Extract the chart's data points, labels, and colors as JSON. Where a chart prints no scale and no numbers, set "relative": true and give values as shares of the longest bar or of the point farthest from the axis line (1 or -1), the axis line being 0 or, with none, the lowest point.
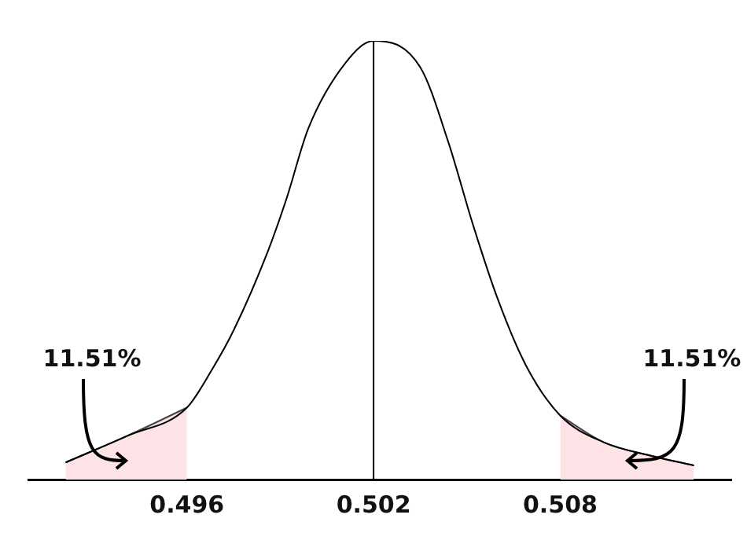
{
  "chart_data": {
    "type": "line",
    "relative": true,
    "xlim": [
      0.4909,
      0.5135
    ],
    "xticks": [
      0.496,
      0.502,
      0.508
    ],
    "grid": false,
    "legend": false,
    "tick_labels": "x",
    "marker": "none",
    "series": [
      {
        "color": "#000000",
        "x": [
          0.4921,
          0.4941,
          0.496,
          0.4968,
          0.4975,
          0.4986,
          0.4992,
          0.4999,
          0.5011,
          0.502,
          0.5035,
          0.5044,
          0.5052,
          0.506,
          0.5069,
          0.508,
          0.5094,
          0.511,
          0.5123
        ],
        "values": [
          0.039,
          0.1,
          0.164,
          0.25,
          0.34,
          0.52,
          0.64,
          0.8,
          0.95,
          1,
          0.94,
          0.77,
          0.58,
          0.41,
          0.26,
          0.146,
          0.085,
          0.053,
          0.032
        ]
      },
      {
        "type": "area",
        "color": "#fde3e5",
        "x": [
          0.4921,
          0.4941,
          0.496
        ],
        "values": [
          0.039,
          0.1,
          0.164
        ]
      },
      {
        "type": "area",
        "color": "#fde3e5",
        "x": [
          0.508,
          0.5094,
          0.511,
          0.5123
        ],
        "values": [
          0.146,
          0.085,
          0.053,
          0.032
        ]
      }
    ],
    "ref_lines": [
      {
        "axis": "x",
        "value": 0.502,
        "color": "#000000"
      }
    ],
    "annotations": [
      "11.51%",
      "11.51%"
    ]
  }
}
